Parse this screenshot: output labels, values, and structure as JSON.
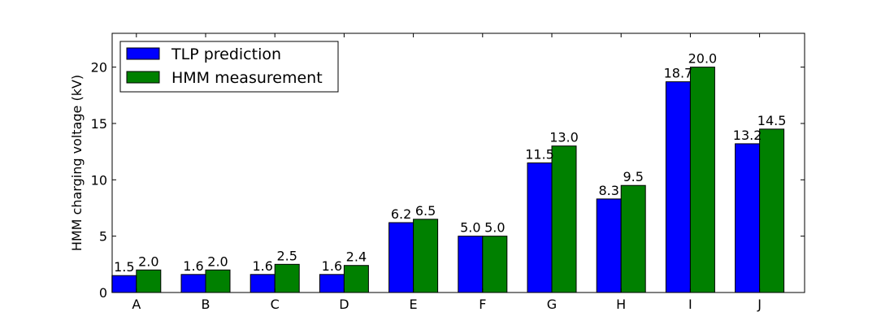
{
  "chart_data": {
    "type": "bar",
    "title": "",
    "xlabel": "",
    "ylabel": "HMM charging voltage (kV)",
    "categories": [
      "A",
      "B",
      "C",
      "D",
      "E",
      "F",
      "G",
      "H",
      "I",
      "J"
    ],
    "series": [
      {
        "name": "TLP prediction",
        "color": "#0000ff",
        "values": [
          1.5,
          1.6,
          1.6,
          1.6,
          6.2,
          5.0,
          11.5,
          8.3,
          18.7,
          13.2
        ],
        "labels": [
          "1.5",
          "1.6",
          "1.6",
          "1.6",
          "6.2",
          "5.0",
          "11.5",
          "8.3",
          "18.7",
          "13.2"
        ]
      },
      {
        "name": "HMM measurement",
        "color": "#008000",
        "values": [
          2.0,
          2.0,
          2.5,
          2.4,
          6.5,
          5.0,
          13.0,
          9.5,
          20.0,
          14.5
        ],
        "labels": [
          "2.0",
          "2.0",
          "2.5",
          "2.4",
          "6.5",
          "5.0",
          "13.0",
          "9.5",
          "20.0",
          "14.5"
        ]
      }
    ],
    "ylim": [
      0,
      23
    ],
    "yticks": [
      "0",
      "5",
      "10",
      "15",
      "20"
    ],
    "legend_position": "top-left",
    "grid": false
  }
}
